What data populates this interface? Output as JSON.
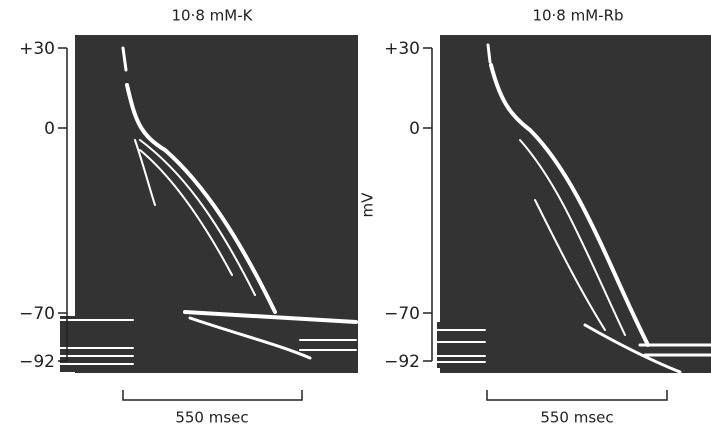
{
  "panels": [
    {
      "title": "10·8 mM-K",
      "yticks": [
        "+30",
        "0",
        "−70",
        "−92"
      ],
      "scale_bar": "550 msec"
    },
    {
      "title": "10·8 mM-Rb",
      "yticks": [
        "+30",
        "0",
        "−70",
        "−92"
      ],
      "scale_bar": "550 msec"
    }
  ],
  "y_axis_label": "mV"
}
